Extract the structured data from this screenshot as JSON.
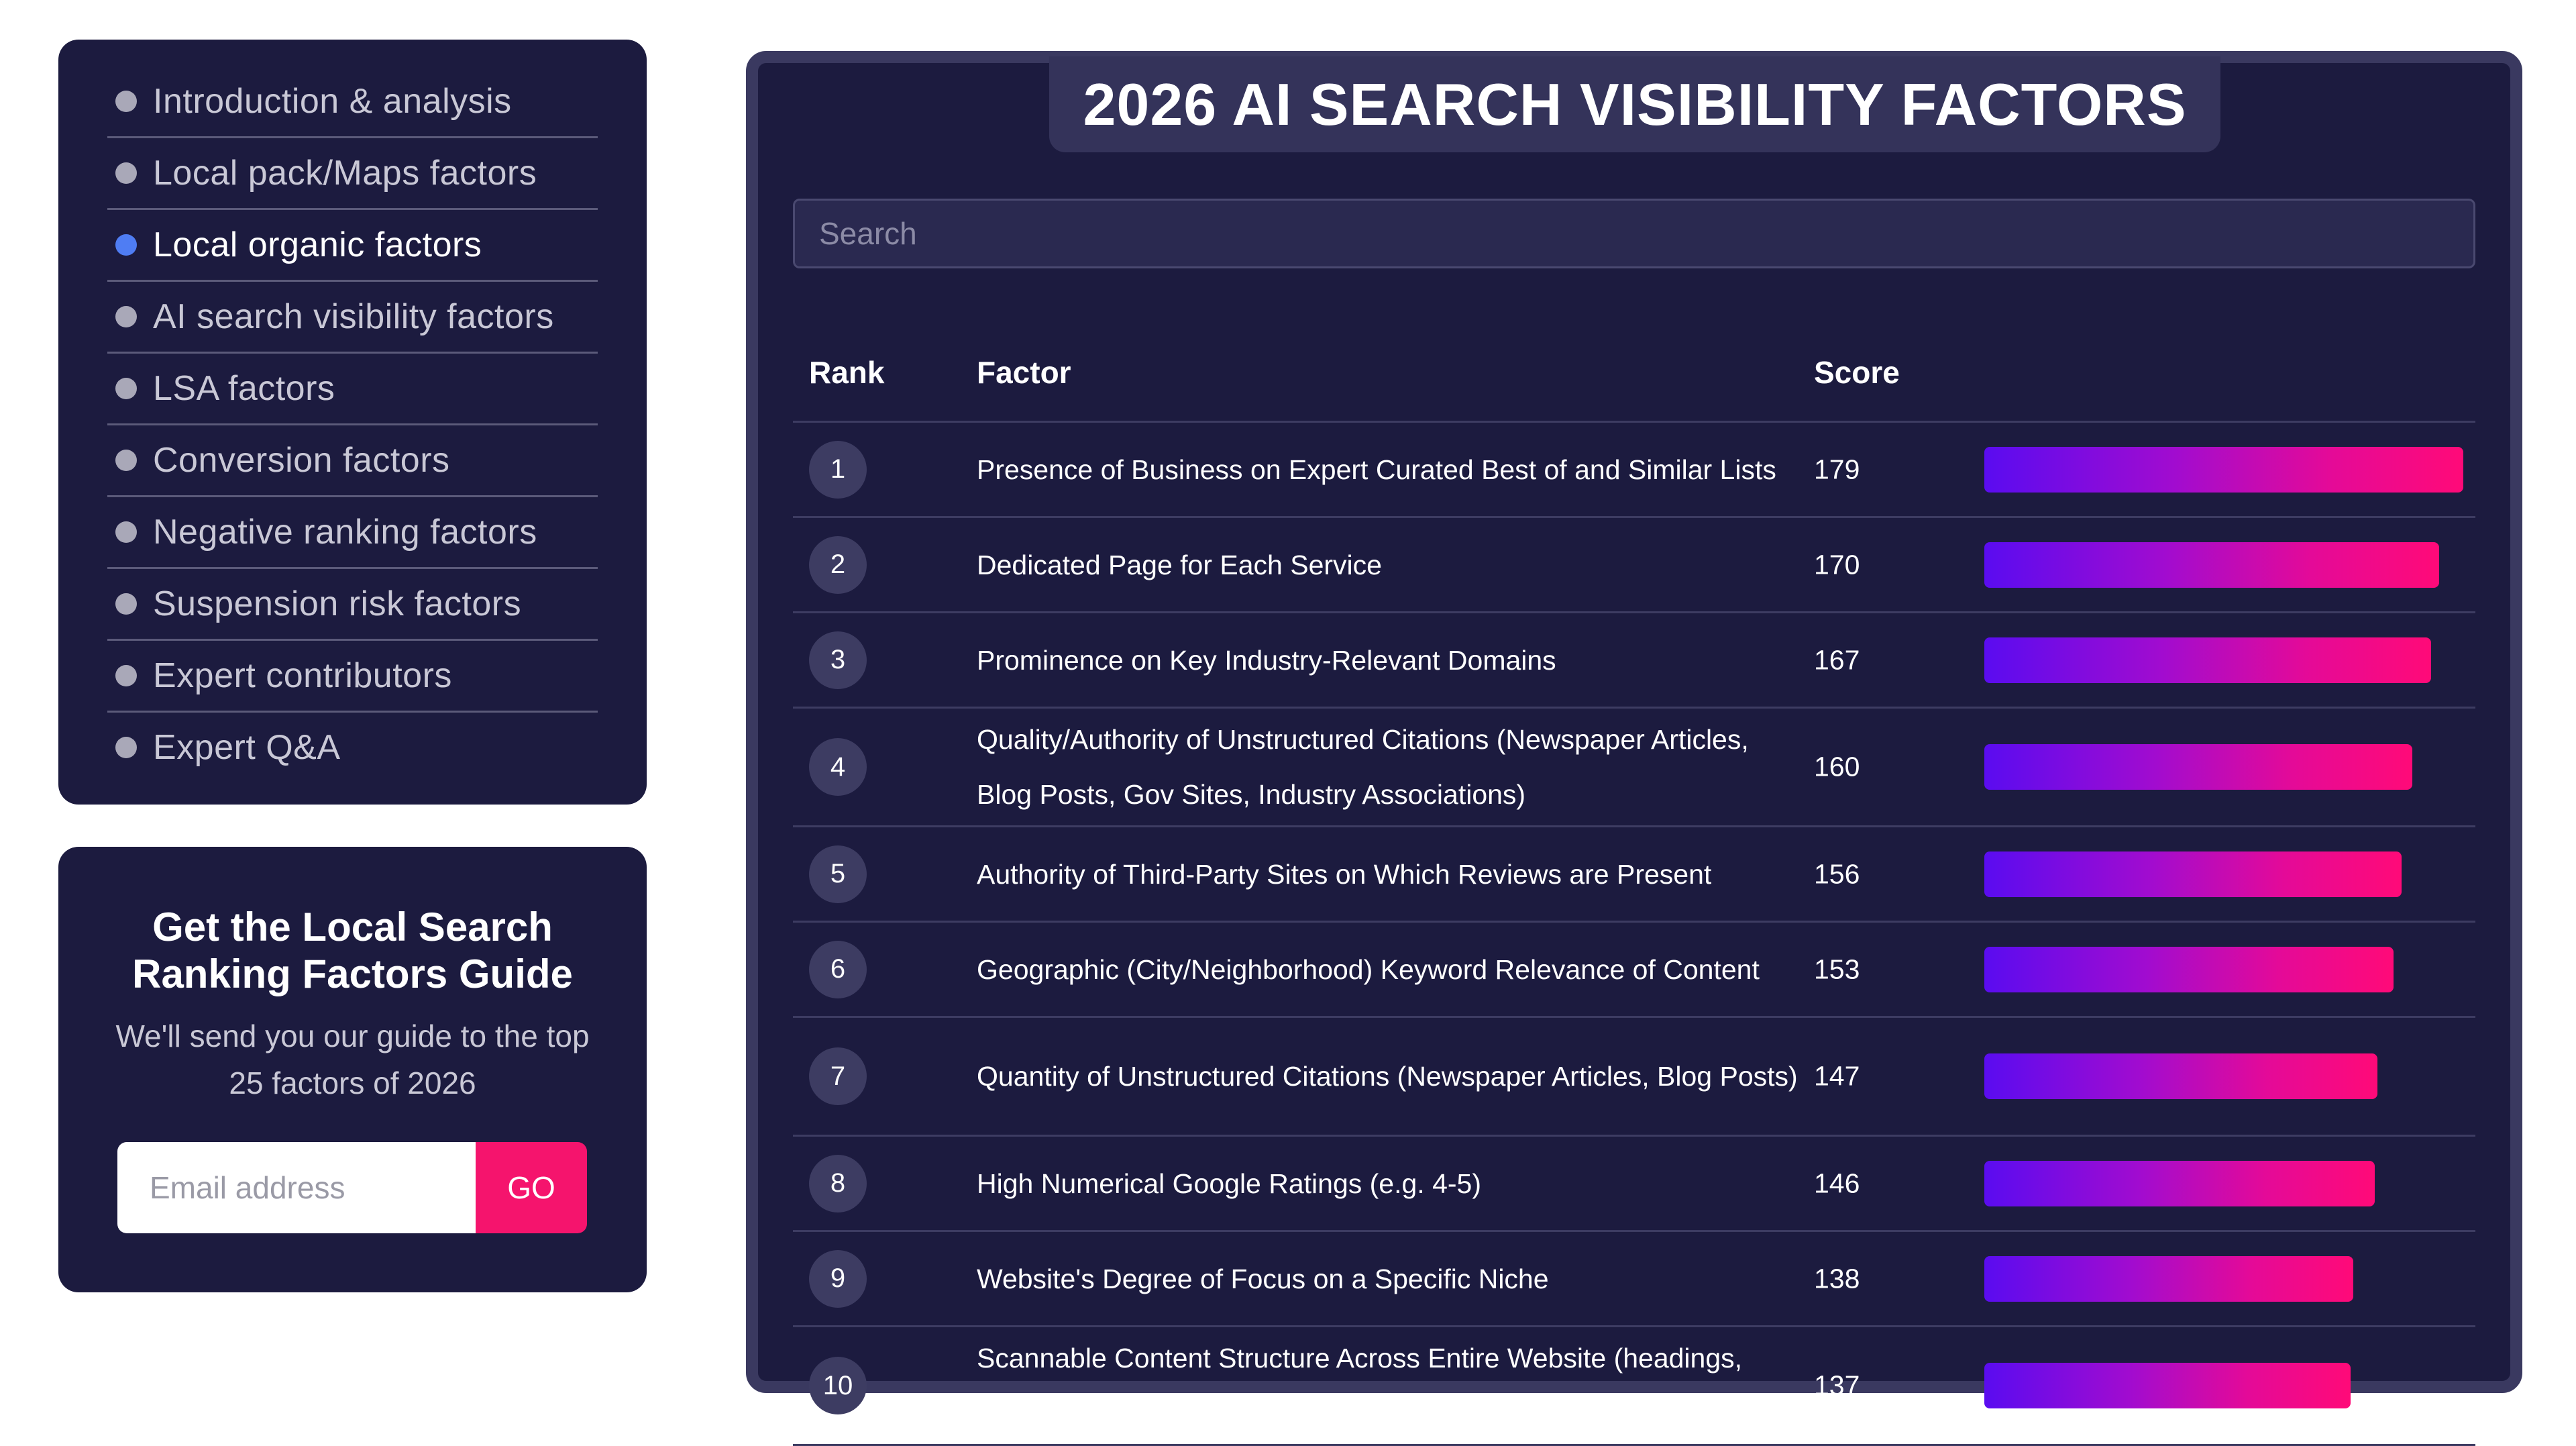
{
  "nav": {
    "items": [
      {
        "label": "Introduction & analysis",
        "active": false
      },
      {
        "label": "Local pack/Maps factors",
        "active": false
      },
      {
        "label": "Local organic factors",
        "active": true
      },
      {
        "label": "AI search visibility factors",
        "active": false
      },
      {
        "label": "LSA factors",
        "active": false
      },
      {
        "label": "Conversion factors",
        "active": false
      },
      {
        "label": "Negative ranking factors",
        "active": false
      },
      {
        "label": "Suspension risk factors",
        "active": false
      },
      {
        "label": "Expert contributors",
        "active": false
      },
      {
        "label": "Expert Q&A",
        "active": false
      }
    ]
  },
  "guide": {
    "title": "Get the Local Search Ranking Factors Guide",
    "description": "We'll send you our guide to the top 25 factors of 2026",
    "email_placeholder": "Email address",
    "go_label": "GO"
  },
  "main": {
    "title": "2026 AI SEARCH VISIBILITY FACTORS",
    "search_placeholder": "Search",
    "columns": {
      "rank": "Rank",
      "factor": "Factor",
      "score": "Score"
    },
    "max_score": 179,
    "rows": [
      {
        "rank": "1",
        "factor": "Presence of Business on Expert Curated Best of and Similar Lists",
        "score": 179
      },
      {
        "rank": "2",
        "factor": "Dedicated Page for Each Service",
        "score": 170
      },
      {
        "rank": "3",
        "factor": "Prominence on Key Industry-Relevant Domains",
        "score": 167
      },
      {
        "rank": "4",
        "factor": "Quality/Authority of Unstructured Citations (Newspaper Articles, Blog Posts, Gov Sites, Industry Associations)",
        "score": 160
      },
      {
        "rank": "5",
        "factor": "Authority of Third-Party Sites on Which Reviews are Present",
        "score": 156
      },
      {
        "rank": "6",
        "factor": "Geographic (City/Neighborhood) Keyword Relevance of Content",
        "score": 153
      },
      {
        "rank": "7",
        "factor": "Quantity of Unstructured Citations (Newspaper Articles, Blog Posts)",
        "score": 147
      },
      {
        "rank": "8",
        "factor": "High Numerical Google Ratings (e.g. 4-5)",
        "score": 146
      },
      {
        "rank": "9",
        "factor": "Website's Degree of Focus on a Specific Niche",
        "score": 138
      },
      {
        "rank": "10",
        "factor": "Scannable Content Structure Across Entire Website (headings, bullet points, images, etc)",
        "score": 137
      }
    ]
  },
  "colors": {
    "panel_bg": "#1c1b3f",
    "active_dot": "#4f7df3",
    "cta": "#f5146d",
    "bar_start": "#5a0cf0",
    "bar_end": "#ff0a78"
  }
}
